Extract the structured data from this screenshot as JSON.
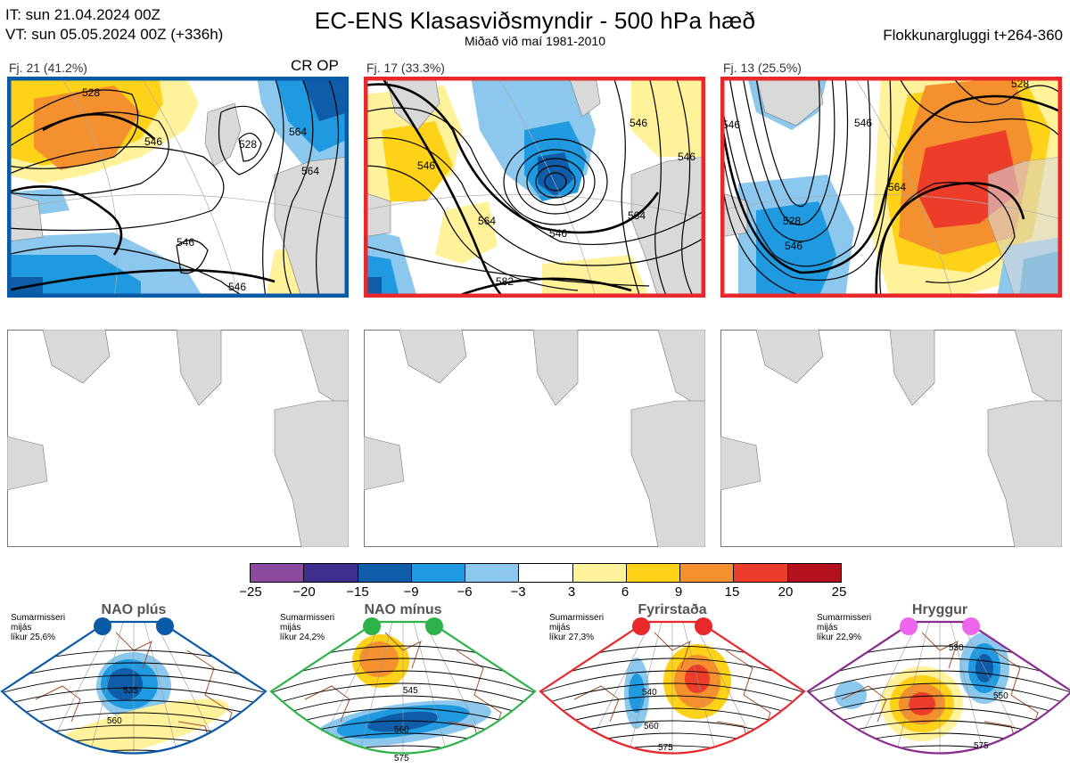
{
  "header": {
    "init_time": "IT: sun 21.04.2024 00Z",
    "valid_time": "VT: sun 05.05.2024 00Z  (+336h)",
    "title": "EC-ENS Klasasviðsmyndir - 500 hPa hæð",
    "subtitle": "Miðað við maí 1981-2010",
    "window": "Flokkunargluggi t+264-360"
  },
  "clusters": [
    {
      "label": "Fj. 21 (41.2%)",
      "tag": "CR OP",
      "border_color": "#0a5aa8",
      "contour_labels": [
        "528",
        "546",
        "564",
        "546",
        "528",
        "564",
        "546"
      ]
    },
    {
      "label": "Fj. 17 (33.3%)",
      "tag": "",
      "border_color": "#e8282b",
      "contour_labels": [
        "546",
        "546",
        "564",
        "546",
        "582",
        "564",
        "546"
      ]
    },
    {
      "label": "Fj. 13 (25.5%)",
      "tag": "",
      "border_color": "#e8282b",
      "contour_labels": [
        "546",
        "564",
        "528",
        "546",
        "546",
        "528"
      ]
    }
  ],
  "colorbar": {
    "ticks": [
      "−25",
      "−20",
      "−15",
      "−9",
      "−6",
      "−3",
      "3",
      "6",
      "9",
      "15",
      "20",
      "25"
    ],
    "colors": [
      "#8b4a9e",
      "#3f2d8f",
      "#0f5ca8",
      "#1f9ae0",
      "#8cc8ee",
      "#ffffff",
      "#fff29a",
      "#ffd21a",
      "#f4902e",
      "#ee3c2a",
      "#b3121d"
    ]
  },
  "regimes": [
    {
      "name": "NAO plús",
      "note_lines": [
        "Sumarmisseri",
        "mijás",
        "líkur 25,6%"
      ],
      "dot_color": "#0a5aa8",
      "border_color": "#0a5aa8",
      "contour_labels": [
        "535",
        "560"
      ]
    },
    {
      "name": "NAO mínus",
      "note_lines": [
        "Sumarmisseri",
        "mijás",
        "líkur 24,2%"
      ],
      "dot_color": "#2db34a",
      "border_color": "#2db34a",
      "contour_labels": [
        "545",
        "560",
        "575"
      ]
    },
    {
      "name": "Fyrirstaða",
      "note_lines": [
        "Sumarmisseri",
        "mijás",
        "líkur 27,3%"
      ],
      "dot_color": "#e8282b",
      "border_color": "#e8282b",
      "contour_labels": [
        "540",
        "560",
        "575"
      ]
    },
    {
      "name": "Hryggur",
      "note_lines": [
        "Sumarmisseri",
        "mijás",
        "líkur 22,9%"
      ],
      "dot_color": "#ee66ee",
      "border_color": "#8a2b8f",
      "contour_labels": [
        "530",
        "550",
        "575"
      ]
    }
  ]
}
